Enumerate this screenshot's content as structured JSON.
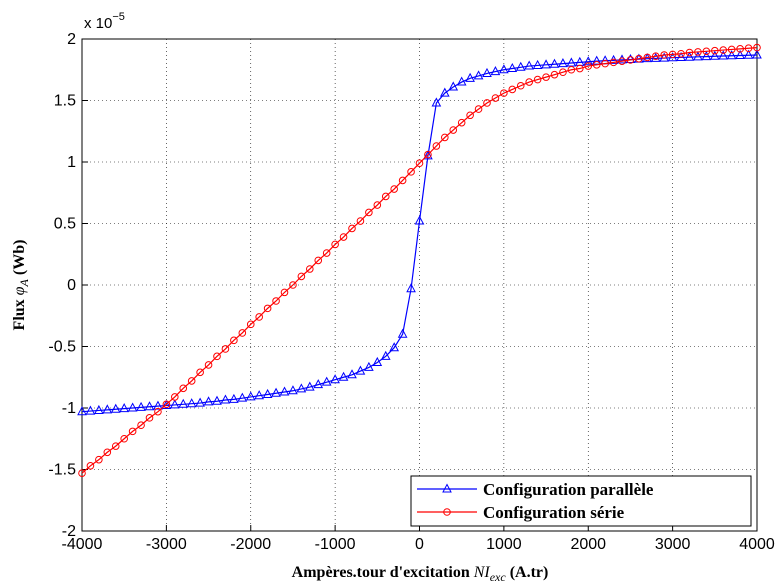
{
  "chart_data": {
    "type": "line",
    "xlabel": {
      "text": "Ampères.tour d'excitation",
      "symbol": "NI",
      "subscript": "exc",
      "unit": "(A.tr)"
    },
    "ylabel": {
      "text": "Flux",
      "symbol": "φ",
      "subscript": "A",
      "unit": "(Wb)"
    },
    "y_multiplier": {
      "base": "x 10",
      "exponent": "−5"
    },
    "x": [
      -4000,
      -3900,
      -3800,
      -3700,
      -3600,
      -3500,
      -3400,
      -3300,
      -3200,
      -3100,
      -3000,
      -2900,
      -2800,
      -2700,
      -2600,
      -2500,
      -2400,
      -2300,
      -2200,
      -2100,
      -2000,
      -1900,
      -1800,
      -1700,
      -1600,
      -1500,
      -1400,
      -1300,
      -1200,
      -1100,
      -1000,
      -900,
      -800,
      -700,
      -600,
      -500,
      -400,
      -300,
      -200,
      -100,
      0,
      100,
      200,
      300,
      400,
      500,
      600,
      700,
      800,
      900,
      1000,
      1100,
      1200,
      1300,
      1400,
      1500,
      1600,
      1700,
      1800,
      1900,
      2000,
      2100,
      2200,
      2300,
      2400,
      2500,
      2600,
      2700,
      2800,
      2900,
      3000,
      3100,
      3200,
      3300,
      3400,
      3500,
      3600,
      3700,
      3800,
      3900,
      4000
    ],
    "series": [
      {
        "name": "Configuration parallèle",
        "color": "#0000ff",
        "marker": "triangle",
        "values": [
          -1.03,
          -1.025,
          -1.02,
          -1.015,
          -1.01,
          -1.005,
          -1.0,
          -0.995,
          -0.99,
          -0.985,
          -0.98,
          -0.975,
          -0.97,
          -0.965,
          -0.96,
          -0.95,
          -0.945,
          -0.935,
          -0.93,
          -0.92,
          -0.91,
          -0.9,
          -0.89,
          -0.88,
          -0.87,
          -0.86,
          -0.845,
          -0.83,
          -0.81,
          -0.79,
          -0.77,
          -0.75,
          -0.73,
          -0.7,
          -0.67,
          -0.63,
          -0.58,
          -0.51,
          -0.4,
          -0.03,
          0.52,
          1.05,
          1.48,
          1.56,
          1.61,
          1.65,
          1.68,
          1.7,
          1.72,
          1.735,
          1.75,
          1.76,
          1.77,
          1.78,
          1.785,
          1.79,
          1.795,
          1.8,
          1.805,
          1.81,
          1.815,
          1.82,
          1.823,
          1.826,
          1.83,
          1.833,
          1.836,
          1.84,
          1.842,
          1.845,
          1.848,
          1.85,
          1.852,
          1.855,
          1.857,
          1.86,
          1.862,
          1.864,
          1.866,
          1.868,
          1.87
        ]
      },
      {
        "name": "Configuration série",
        "color": "#ff0000",
        "marker": "circle",
        "values": [
          -1.53,
          -1.47,
          -1.42,
          -1.36,
          -1.31,
          -1.25,
          -1.19,
          -1.14,
          -1.08,
          -1.03,
          -0.97,
          -0.91,
          -0.84,
          -0.78,
          -0.71,
          -0.65,
          -0.58,
          -0.52,
          -0.45,
          -0.39,
          -0.32,
          -0.26,
          -0.19,
          -0.13,
          -0.06,
          0.0,
          0.07,
          0.13,
          0.2,
          0.26,
          0.33,
          0.39,
          0.46,
          0.52,
          0.59,
          0.65,
          0.72,
          0.78,
          0.85,
          0.92,
          0.99,
          1.06,
          1.13,
          1.2,
          1.26,
          1.32,
          1.38,
          1.43,
          1.48,
          1.52,
          1.56,
          1.59,
          1.62,
          1.65,
          1.67,
          1.69,
          1.71,
          1.73,
          1.75,
          1.76,
          1.78,
          1.79,
          1.8,
          1.81,
          1.82,
          1.83,
          1.84,
          1.85,
          1.86,
          1.87,
          1.875,
          1.88,
          1.89,
          1.895,
          1.9,
          1.905,
          1.91,
          1.915,
          1.92,
          1.925,
          1.93
        ]
      }
    ],
    "xlim": [
      -4000,
      4000
    ],
    "xticks": [
      -4000,
      -3000,
      -2000,
      -1000,
      0,
      1000,
      2000,
      3000,
      4000
    ],
    "ylim": [
      -2,
      2
    ],
    "yticks": [
      -2,
      -1.5,
      -1,
      -0.5,
      0,
      0.5,
      1,
      1.5,
      2
    ],
    "grid": true,
    "legend": "bottom-right"
  }
}
